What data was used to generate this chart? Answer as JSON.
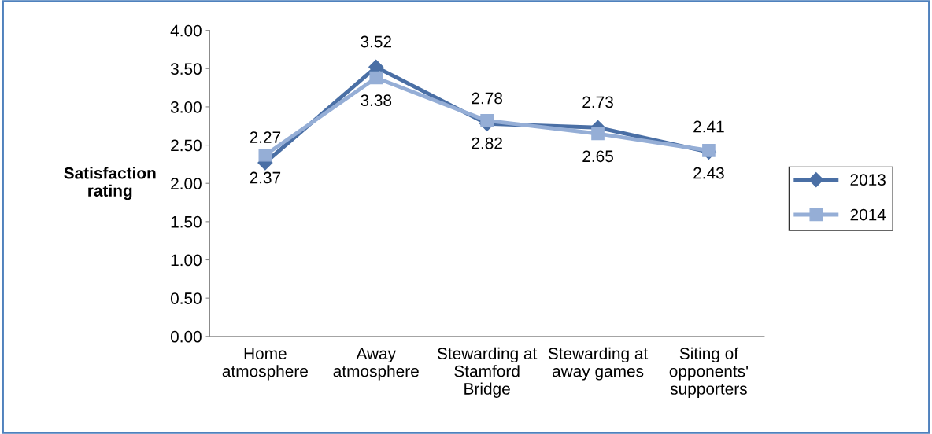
{
  "chart_data": {
    "type": "line",
    "ylabel": "Satisfaction\nrating",
    "categories": [
      "Home\natmosphere",
      "Away\natmosphere",
      "Stewarding at\nStamford\nBridge",
      "Stewarding at\naway games",
      "Siting of\nopponents'\nsupporters"
    ],
    "series": [
      {
        "name": "2013",
        "color": "#4a6fa5",
        "marker": "diamond",
        "values": [
          2.27,
          3.52,
          2.78,
          2.73,
          2.41
        ]
      },
      {
        "name": "2014",
        "color": "#95aed6",
        "marker": "square",
        "values": [
          2.37,
          3.38,
          2.82,
          2.65,
          2.43
        ]
      }
    ],
    "ylim": [
      0,
      4
    ],
    "yticks": [
      {
        "value": 0,
        "label": "0.00"
      },
      {
        "value": 0.5,
        "label": "0.50"
      },
      {
        "value": 1,
        "label": "1.00"
      },
      {
        "value": 1.5,
        "label": "1.50"
      },
      {
        "value": 2,
        "label": "2.00"
      },
      {
        "value": 2.5,
        "label": "2.50"
      },
      {
        "value": 3,
        "label": "3.00"
      },
      {
        "value": 3.5,
        "label": "3.50"
      },
      {
        "value": 4,
        "label": "4.00"
      }
    ],
    "data_labels": true,
    "legend": "right",
    "grid": false
  }
}
